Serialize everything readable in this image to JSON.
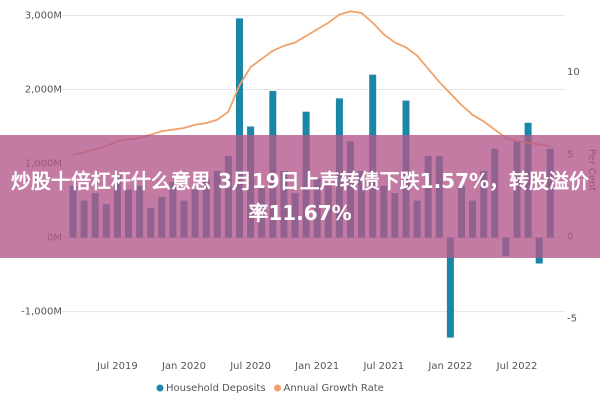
{
  "chart_data": {
    "type": "bar-line",
    "categories": [
      null,
      null,
      null,
      null,
      "Jul 2019",
      null,
      null,
      null,
      null,
      null,
      "Jan 2020",
      null,
      null,
      null,
      null,
      null,
      "Jul 2020",
      null,
      null,
      null,
      null,
      null,
      "Jan 2021",
      null,
      null,
      null,
      null,
      null,
      "Jul 2021",
      null,
      null,
      null,
      null,
      null,
      "Jan 2022",
      null,
      null,
      null,
      null,
      null,
      "Jul 2022",
      null,
      null,
      null
    ],
    "series": [
      {
        "name": "Household Deposits",
        "type": "bar",
        "color": "#1b87a6",
        "values": [
          700,
          500,
          600,
          450,
          850,
          650,
          700,
          400,
          550,
          750,
          500,
          650,
          800,
          900,
          1100,
          2960,
          1500,
          700,
          1980,
          900,
          600,
          1700,
          800,
          700,
          1880,
          1300,
          900,
          2200,
          700,
          600,
          1850,
          500,
          1100,
          1100,
          -1350,
          700,
          500,
          900,
          1200,
          -250,
          1300,
          1550,
          -350,
          1200
        ]
      },
      {
        "name": "Annual Growth Rate",
        "type": "line",
        "axis": "y2",
        "color": "#f0a26a",
        "values": [
          5.0,
          5.1,
          5.3,
          5.5,
          5.8,
          5.9,
          6.0,
          6.2,
          6.4,
          6.5,
          6.6,
          6.8,
          6.9,
          7.1,
          7.6,
          9.2,
          10.3,
          10.8,
          11.3,
          11.6,
          11.8,
          12.2,
          12.6,
          13.0,
          13.5,
          13.7,
          13.6,
          13.0,
          12.3,
          11.8,
          11.5,
          11.0,
          10.2,
          9.4,
          8.7,
          8.0,
          7.4,
          7.0,
          6.5,
          6.0,
          5.8,
          5.7,
          5.6,
          5.5
        ]
      }
    ],
    "ylim": [
      -1450,
      3100
    ],
    "yticks": [
      {
        "value": -1000,
        "label": "-1,000M"
      },
      {
        "value": 0,
        "label": "0M"
      },
      {
        "value": 1000,
        "label": "1,000M"
      },
      {
        "value": 2000,
        "label": "2,000M"
      },
      {
        "value": 3000,
        "label": "3,000M"
      }
    ],
    "y2lim": [
      -6.6,
      13.9
    ],
    "y2ticks": [
      -5,
      0,
      5,
      10
    ],
    "y2label": "Per Cent",
    "grid": true
  },
  "overlay": {
    "text": "炒股十倍杠杆什么意思 3月19日上声转债下跌1.57%，转股溢价率11.67%"
  }
}
